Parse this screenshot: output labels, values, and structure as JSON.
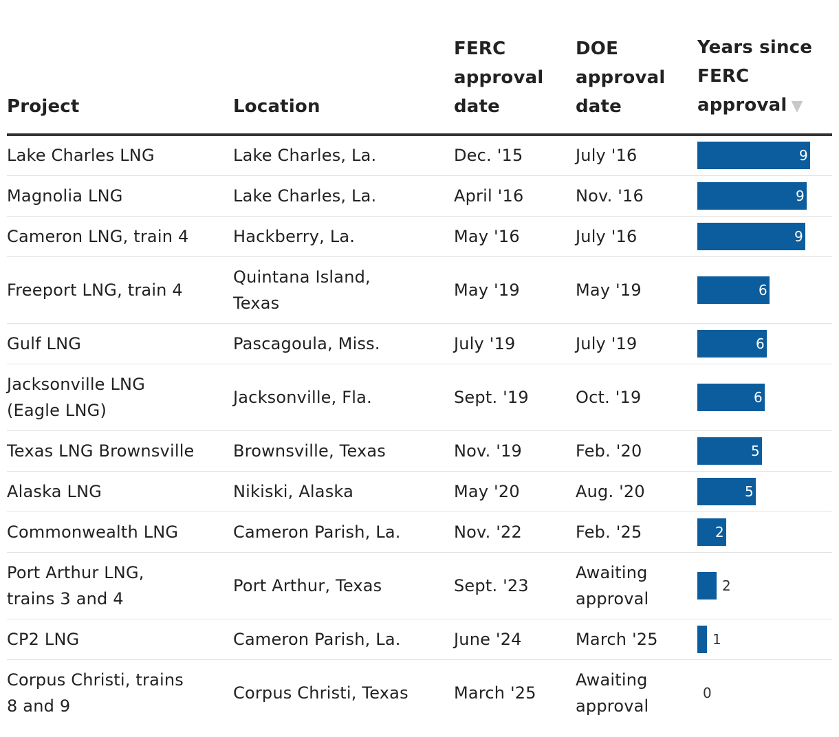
{
  "header": {
    "project": "Project",
    "location": "Location",
    "ferc": [
      "FERC",
      "approval",
      "date"
    ],
    "doe": [
      "DOE",
      "approval",
      "date"
    ],
    "years": [
      "Years since",
      "FERC",
      "approval"
    ],
    "sort_icon": "▼"
  },
  "colors": {
    "bar": "#0b5d9e"
  },
  "chart_data": {
    "type": "table",
    "columns": [
      "Project",
      "Location",
      "FERC approval date",
      "DOE approval date",
      "Years since FERC approval"
    ],
    "sorted_by": "Years since FERC approval",
    "sort_order": "descending",
    "years_max": 9.4,
    "rows": [
      {
        "project": [
          "Lake Charles LNG"
        ],
        "location": [
          "Lake Charles, La."
        ],
        "ferc": "Dec. '15",
        "doe": [
          "July '16"
        ],
        "years": 9.4,
        "label": "9"
      },
      {
        "project": [
          "Magnolia LNG"
        ],
        "location": [
          "Lake Charles, La."
        ],
        "ferc": "April '16",
        "doe": [
          "Nov. '16"
        ],
        "years": 9.1,
        "label": "9"
      },
      {
        "project": [
          "Cameron LNG, train 4"
        ],
        "location": [
          "Hackberry, La."
        ],
        "ferc": "May '16",
        "doe": [
          "July '16"
        ],
        "years": 9.0,
        "label": "9"
      },
      {
        "project": [
          "Freeport LNG, train 4"
        ],
        "location": [
          "Quintana Island,",
          "Texas"
        ],
        "ferc": "May '19",
        "doe": [
          "May '19"
        ],
        "years": 6.0,
        "label": "6"
      },
      {
        "project": [
          "Gulf LNG"
        ],
        "location": [
          "Pascagoula, Miss."
        ],
        "ferc": "July '19",
        "doe": [
          "July '19"
        ],
        "years": 5.8,
        "label": "6"
      },
      {
        "project": [
          "Jacksonville LNG",
          "(Eagle LNG)"
        ],
        "location": [
          "Jacksonville, Fla."
        ],
        "ferc": "Sept. '19",
        "doe": [
          "Oct. '19"
        ],
        "years": 5.6,
        "label": "6"
      },
      {
        "project": [
          "Texas LNG Brownsville"
        ],
        "location": [
          "Brownsville, Texas"
        ],
        "ferc": "Nov. '19",
        "doe": [
          "Feb. '20"
        ],
        "years": 5.4,
        "label": "5"
      },
      {
        "project": [
          "Alaska LNG"
        ],
        "location": [
          "Nikiski, Alaska"
        ],
        "ferc": "May '20",
        "doe": [
          "Aug. '20"
        ],
        "years": 4.9,
        "label": "5"
      },
      {
        "project": [
          "Commonwealth LNG"
        ],
        "location": [
          "Cameron Parish, La."
        ],
        "ferc": "Nov. '22",
        "doe": [
          "Feb. '25"
        ],
        "years": 2.4,
        "label": "2"
      },
      {
        "project": [
          "Port Arthur LNG,",
          "trains 3 and 4"
        ],
        "location": [
          "Port Arthur, Texas"
        ],
        "ferc": "Sept. '23",
        "doe": [
          "Awaiting",
          "approval"
        ],
        "years": 1.6,
        "label": "2"
      },
      {
        "project": [
          "CP2 LNG"
        ],
        "location": [
          "Cameron Parish, La."
        ],
        "ferc": "June '24",
        "doe": [
          "March '25"
        ],
        "years": 0.8,
        "label": "1"
      },
      {
        "project": [
          "Corpus Christi, trains",
          "8 and 9"
        ],
        "location": [
          "Corpus Christi, Texas"
        ],
        "ferc": "March '25",
        "doe": [
          "Awaiting",
          "approval"
        ],
        "years": 0.0,
        "label": "0"
      }
    ]
  }
}
